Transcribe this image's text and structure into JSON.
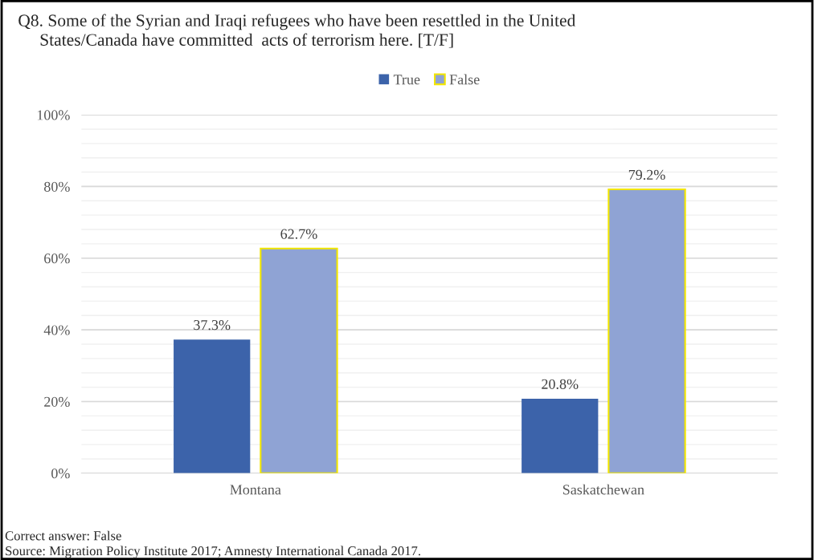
{
  "chart_data": {
    "type": "bar",
    "title": "Q8. Some of the Syrian and Iraqi refugees who have been resettled in the United\n     States/Canada have committed  acts of terrorism here. [T/F]",
    "categories": [
      "Montana",
      "Saskatchewan"
    ],
    "series": [
      {
        "name": "True",
        "color": "#3c63aa",
        "values": [
          37.3,
          20.8
        ],
        "value_labels": [
          "37.3%",
          "20.8%"
        ]
      },
      {
        "name": "False",
        "color": "#8fa3d4",
        "values": [
          62.7,
          79.2
        ],
        "value_labels": [
          "62.7%",
          "79.2%"
        ]
      }
    ],
    "ylim": [
      0,
      100
    ],
    "yticks": [
      {
        "value": 0,
        "label": "0%"
      },
      {
        "value": 20,
        "label": "20%"
      },
      {
        "value": 40,
        "label": "40%"
      },
      {
        "value": 60,
        "label": "60%"
      },
      {
        "value": 80,
        "label": "80%"
      },
      {
        "value": 100,
        "label": "100%"
      }
    ],
    "grid": "y",
    "legend": "top",
    "annotations": [
      "Correct answer: False",
      "Source: Migration Policy Institute 2017; Amnesty International Canada 2017."
    ]
  }
}
